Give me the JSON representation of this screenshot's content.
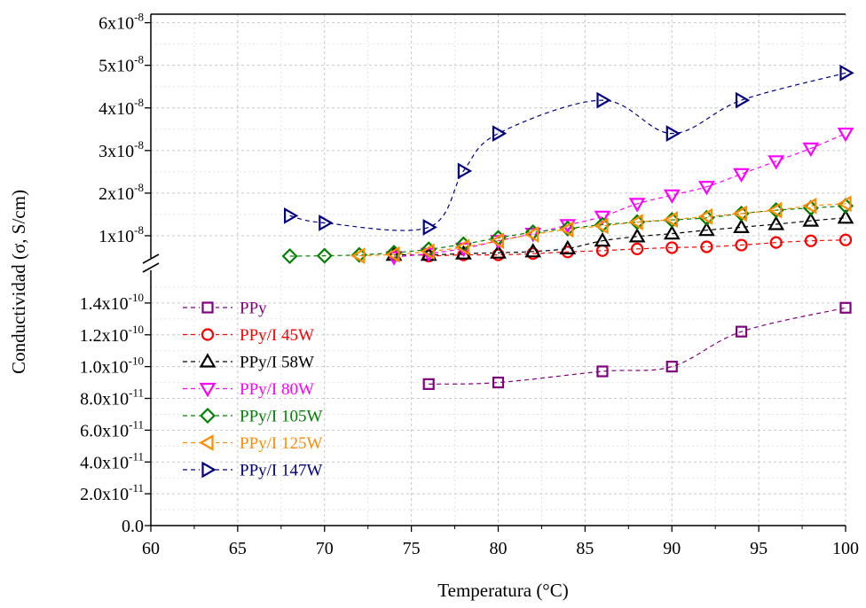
{
  "chart_data": {
    "type": "line",
    "title": "",
    "xlabel": "Temperatura (°C)",
    "ylabel": "Conductividad (σ, S/cm)",
    "xlim": [
      60,
      100
    ],
    "x_ticks": [
      60,
      65,
      70,
      75,
      80,
      85,
      90,
      95,
      100
    ],
    "y_axis_break": true,
    "y_lower": {
      "ylim": [
        0,
        1.6e-10
      ],
      "ticks": [
        {
          "value": 0,
          "mantissa": "0.0",
          "exponent": ""
        },
        {
          "value": 2e-11,
          "mantissa": "2.0x10",
          "exponent": "-11"
        },
        {
          "value": 4e-11,
          "mantissa": "4.0x10",
          "exponent": "-11"
        },
        {
          "value": 6e-11,
          "mantissa": "6.0x10",
          "exponent": "-11"
        },
        {
          "value": 8e-11,
          "mantissa": "8.0x10",
          "exponent": "-11"
        },
        {
          "value": 1e-10,
          "mantissa": "1.0x10",
          "exponent": "-10"
        },
        {
          "value": 1.2e-10,
          "mantissa": "1.2x10",
          "exponent": "-10"
        },
        {
          "value": 1.4e-10,
          "mantissa": "1.4x10",
          "exponent": "-10"
        }
      ]
    },
    "y_upper": {
      "ylim": [
        5e-09,
        6.2e-08
      ],
      "ticks": [
        {
          "value": 1e-08,
          "mantissa": "1x10",
          "exponent": "-8"
        },
        {
          "value": 2e-08,
          "mantissa": "2x10",
          "exponent": "-8"
        },
        {
          "value": 3e-08,
          "mantissa": "3x10",
          "exponent": "-8"
        },
        {
          "value": 4e-08,
          "mantissa": "4x10",
          "exponent": "-8"
        },
        {
          "value": 5e-08,
          "mantissa": "5x10",
          "exponent": "-8"
        },
        {
          "value": 6e-08,
          "mantissa": "6x10",
          "exponent": "-8"
        }
      ]
    },
    "grid": true,
    "legend_position": "left-center",
    "series": [
      {
        "name": "PPy",
        "color": "#800080",
        "marker": "square",
        "panel": "lower",
        "x": [
          76,
          80,
          86,
          90,
          94,
          100
        ],
        "y": [
          8.9e-11,
          9e-11,
          9.7e-11,
          1e-10,
          1.22e-10,
          1.37e-10
        ]
      },
      {
        "name": "PPy/I 45W",
        "color": "#ff0000",
        "marker": "circle",
        "panel": "upper",
        "x": [
          76,
          78,
          80,
          82,
          84,
          86,
          88,
          90,
          92,
          94,
          96,
          98,
          100
        ],
        "y": [
          5.2e-09,
          5.5e-09,
          5.5e-09,
          5.8e-09,
          6.2e-09,
          6.5e-09,
          6.9e-09,
          7.2e-09,
          7.4e-09,
          7.8e-09,
          8.4e-09,
          8.8e-09,
          9e-09
        ]
      },
      {
        "name": "PPy/I 58W",
        "color": "#000000",
        "marker": "triangle-up",
        "panel": "upper",
        "x": [
          74,
          76,
          78,
          80,
          82,
          84,
          86,
          88,
          90,
          92,
          94,
          96,
          98,
          100
        ],
        "y": [
          5.5e-09,
          5.5e-09,
          5.8e-09,
          6e-09,
          6.3e-09,
          7e-09,
          8.8e-09,
          9.8e-09,
          1.05e-08,
          1.13e-08,
          1.2e-08,
          1.27e-08,
          1.35e-08,
          1.42e-08
        ]
      },
      {
        "name": "PPy/I 80W",
        "color": "#ff00ff",
        "marker": "triangle-down",
        "panel": "upper",
        "x": [
          74,
          76,
          78,
          80,
          82,
          84,
          86,
          88,
          90,
          92,
          94,
          96,
          98,
          100
        ],
        "y": [
          5e-09,
          5.8e-09,
          7e-09,
          8.8e-09,
          1.05e-08,
          1.25e-08,
          1.45e-08,
          1.75e-08,
          1.95e-08,
          2.15e-08,
          2.45e-08,
          2.75e-08,
          3.05e-08,
          3.4e-08
        ]
      },
      {
        "name": "PPy/I 105W",
        "color": "#008000",
        "marker": "diamond",
        "panel": "upper",
        "x": [
          68,
          70,
          72,
          74,
          76,
          78,
          80,
          82,
          84,
          86,
          88,
          90,
          92,
          94,
          96,
          98,
          100
        ],
        "y": [
          5.2e-09,
          5.3e-09,
          5.5e-09,
          6e-09,
          6.8e-09,
          8e-09,
          9.5e-09,
          1.08e-08,
          1.17e-08,
          1.26e-08,
          1.32e-08,
          1.37e-08,
          1.42e-08,
          1.52e-08,
          1.6e-08,
          1.65e-08,
          1.7e-08
        ]
      },
      {
        "name": "PPy/I 125W",
        "color": "#ff8c00",
        "marker": "triangle-left",
        "panel": "upper",
        "x": [
          72,
          74,
          76,
          78,
          80,
          82,
          84,
          86,
          88,
          90,
          92,
          94,
          96,
          98,
          100
        ],
        "y": [
          5.3e-09,
          5.6e-09,
          6.3e-09,
          7.3e-09,
          8.8e-09,
          1.03e-08,
          1.15e-08,
          1.23e-08,
          1.32e-08,
          1.38e-08,
          1.45e-08,
          1.52e-08,
          1.6e-08,
          1.7e-08,
          1.75e-08
        ]
      },
      {
        "name": "PPy/I 147W",
        "color": "#000080",
        "marker": "triangle-right",
        "panel": "upper",
        "x": [
          68,
          70,
          76,
          78,
          80,
          86,
          90,
          94,
          100
        ],
        "y": [
          1.47e-08,
          1.3e-08,
          1.2e-08,
          2.52e-08,
          3.4e-08,
          4.18e-08,
          3.4e-08,
          4.18e-08,
          4.82e-08
        ]
      }
    ]
  }
}
